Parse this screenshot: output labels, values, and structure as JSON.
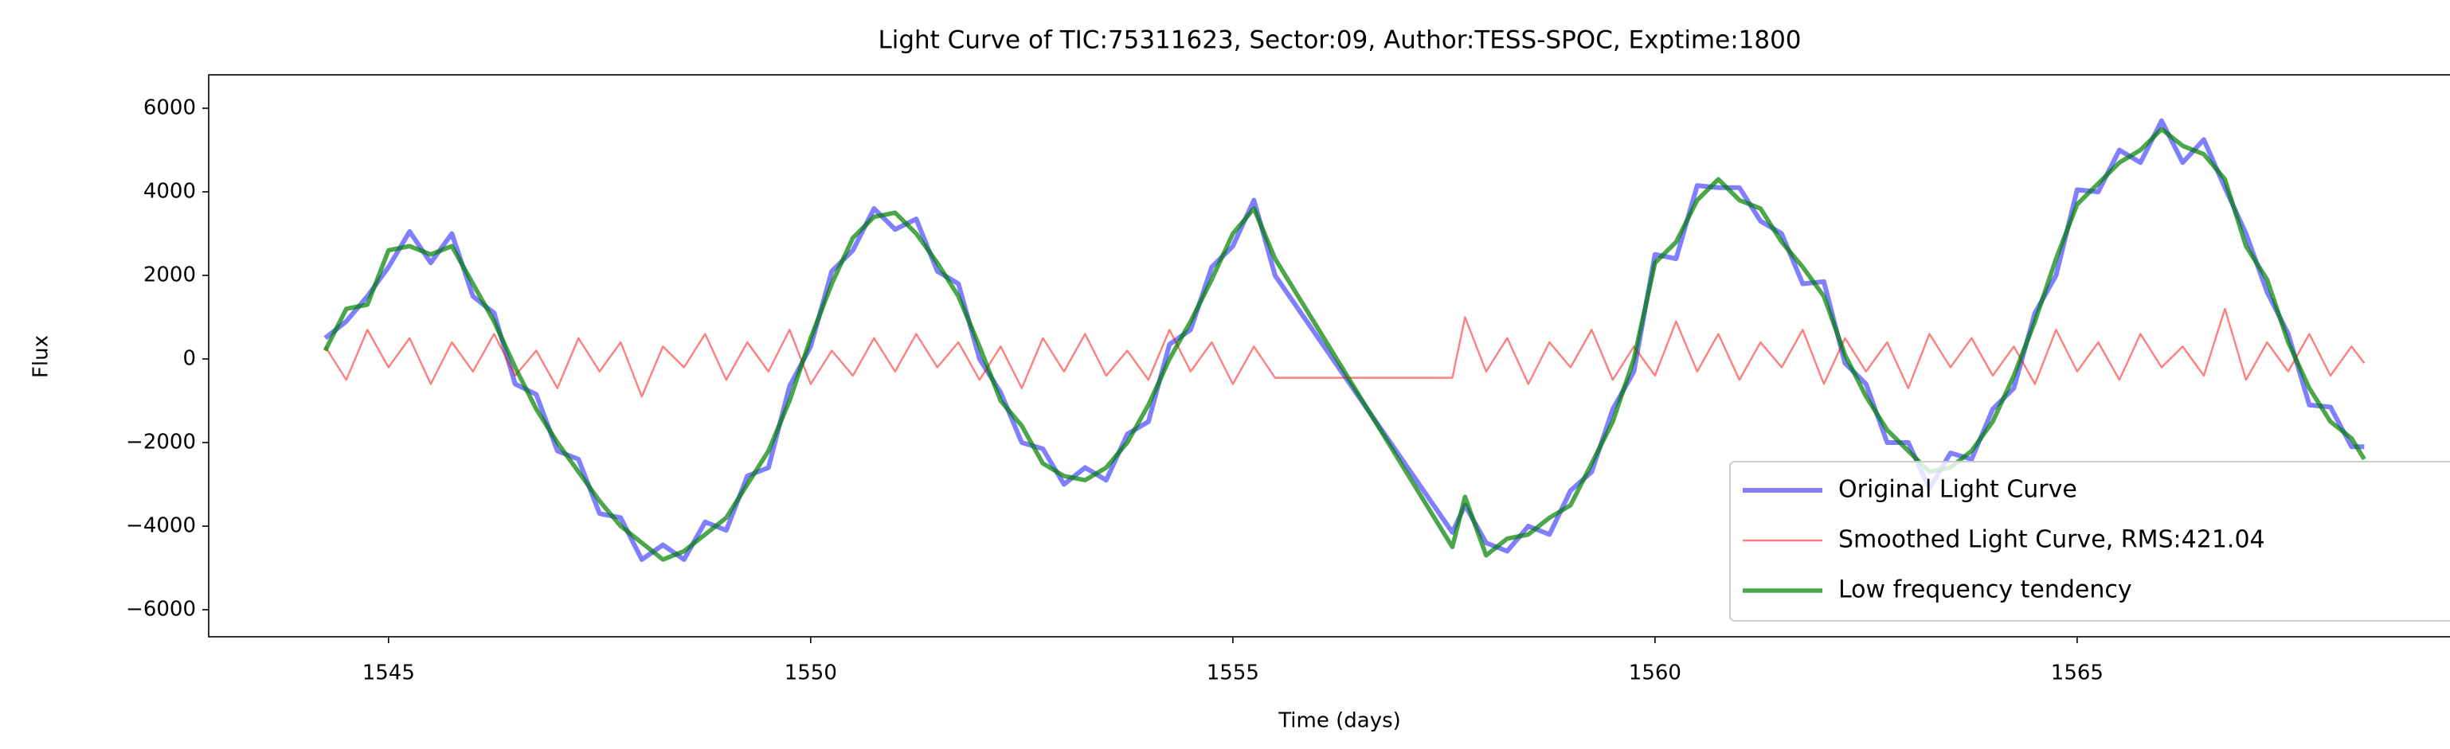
{
  "chart_data": {
    "type": "line",
    "title": "Light Curve of TIC:75311623, Sector:09, Author:TESS-SPOC, Exptime:1800",
    "x_label": "Time (days)",
    "y_label": "Flux",
    "xlim": [
      1542.87,
      1569.68
    ],
    "ylim": [
      -6648,
      6800
    ],
    "xticks": [
      1545,
      1550,
      1555,
      1560,
      1565
    ],
    "yticks": [
      {
        "value": -6000,
        "label": "−6000"
      },
      {
        "value": -4000,
        "label": "−4000"
      },
      {
        "value": -2000,
        "label": "−2000"
      },
      0,
      2000,
      4000,
      6000
    ],
    "grid": false,
    "legend": "lower right",
    "x": [
      1544.25,
      1544.5,
      1544.75,
      1545.0,
      1545.25,
      1545.5,
      1545.75,
      1546.0,
      1546.25,
      1546.5,
      1546.75,
      1547.0,
      1547.25,
      1547.5,
      1547.75,
      1548.0,
      1548.25,
      1548.5,
      1548.75,
      1549.0,
      1549.25,
      1549.5,
      1549.75,
      1550.0,
      1550.25,
      1550.5,
      1550.75,
      1551.0,
      1551.25,
      1551.5,
      1551.75,
      1552.0,
      1552.25,
      1552.5,
      1552.75,
      1553.0,
      1553.25,
      1553.5,
      1553.75,
      1554.0,
      1554.25,
      1554.5,
      1554.75,
      1555.0,
      1555.25,
      1555.5,
      1557.6,
      1557.75,
      1558.0,
      1558.25,
      1558.5,
      1558.75,
      1559.0,
      1559.25,
      1559.5,
      1559.75,
      1560.0,
      1560.25,
      1560.5,
      1560.75,
      1561.0,
      1561.25,
      1561.5,
      1561.75,
      1562.0,
      1562.25,
      1562.5,
      1562.75,
      1563.0,
      1563.25,
      1563.5,
      1563.75,
      1564.0,
      1564.25,
      1564.5,
      1564.75,
      1565.0,
      1565.25,
      1565.5,
      1565.75,
      1566.0,
      1566.25,
      1566.5,
      1566.75,
      1567.0,
      1567.25,
      1567.5,
      1567.75,
      1568.0,
      1568.25,
      1568.4
    ],
    "series": [
      {
        "name": "Original Light Curve",
        "color": "#0000ff",
        "values": [
          500,
          900,
          1500,
          2200,
          3050,
          2300,
          3000,
          1500,
          1100,
          -600,
          -850,
          -2200,
          -2400,
          -3700,
          -3800,
          -4800,
          -4450,
          -4800,
          -3900,
          -4100,
          -2800,
          -2600,
          -650,
          300,
          2100,
          2600,
          3600,
          3100,
          3350,
          2100,
          1800,
          0,
          -800,
          -2000,
          -2150,
          -3000,
          -2600,
          -2900,
          -1800,
          -1500,
          350,
          700,
          2200,
          2700,
          3800,
          2000,
          -4150,
          -3500,
          -4400,
          -4600,
          -4000,
          -4200,
          -3150,
          -2700,
          -1200,
          -300,
          2500,
          2400,
          4150,
          4100,
          4100,
          3300,
          3000,
          1800,
          1850,
          -100,
          -600,
          -2000,
          -2000,
          -3100,
          -2250,
          -2400,
          -1200,
          -700,
          1100,
          2000,
          4050,
          4000,
          5000,
          4700,
          5700,
          4700,
          5250,
          4100,
          3000,
          1600,
          600,
          -1100,
          -1150,
          -2100,
          -2100
        ]
      },
      {
        "name": "Smoothed Light Curve, RMS:421.04",
        "color": "#ff0000",
        "values": [
          300,
          -500,
          700,
          -200,
          500,
          -600,
          400,
          -300,
          600,
          -400,
          200,
          -700,
          500,
          -300,
          400,
          -900,
          300,
          -200,
          600,
          -500,
          400,
          -300,
          700,
          -600,
          200,
          -400,
          500,
          -300,
          600,
          -200,
          400,
          -500,
          300,
          -700,
          500,
          -300,
          600,
          -400,
          200,
          -500,
          700,
          -300,
          400,
          -600,
          300,
          -450,
          -450,
          1000,
          -300,
          500,
          -600,
          400,
          -200,
          700,
          -500,
          300,
          -400,
          900,
          -300,
          600,
          -500,
          400,
          -200,
          700,
          -600,
          500,
          -300,
          400,
          -700,
          600,
          -200,
          500,
          -400,
          300,
          -600,
          700,
          -300,
          400,
          -500,
          600,
          -200,
          300,
          -400,
          1200,
          -500,
          400,
          -300,
          600,
          -400,
          300,
          -100
        ]
      },
      {
        "name": "Low frequency tendency",
        "color": "#008000",
        "values": [
          200,
          1200,
          1300,
          2600,
          2700,
          2500,
          2700,
          1800,
          900,
          -200,
          -1200,
          -2000,
          -2700,
          -3400,
          -4000,
          -4400,
          -4800,
          -4600,
          -4200,
          -3800,
          -3000,
          -2200,
          -1000,
          500,
          1800,
          2900,
          3400,
          3500,
          3000,
          2300,
          1500,
          300,
          -1000,
          -1600,
          -2500,
          -2800,
          -2900,
          -2600,
          -2000,
          -1100,
          0,
          900,
          1900,
          3000,
          3600,
          2400,
          -4500,
          -3300,
          -4700,
          -4300,
          -4200,
          -3800,
          -3500,
          -2500,
          -1500,
          0,
          2300,
          2800,
          3800,
          4300,
          3800,
          3600,
          2800,
          2200,
          1500,
          100,
          -900,
          -1700,
          -2200,
          -2700,
          -2600,
          -2200,
          -1500,
          -400,
          900,
          2400,
          3700,
          4200,
          4700,
          5000,
          5500,
          5100,
          4900,
          4300,
          2700,
          1900,
          400,
          -700,
          -1500,
          -1900,
          -2400
        ]
      }
    ]
  }
}
